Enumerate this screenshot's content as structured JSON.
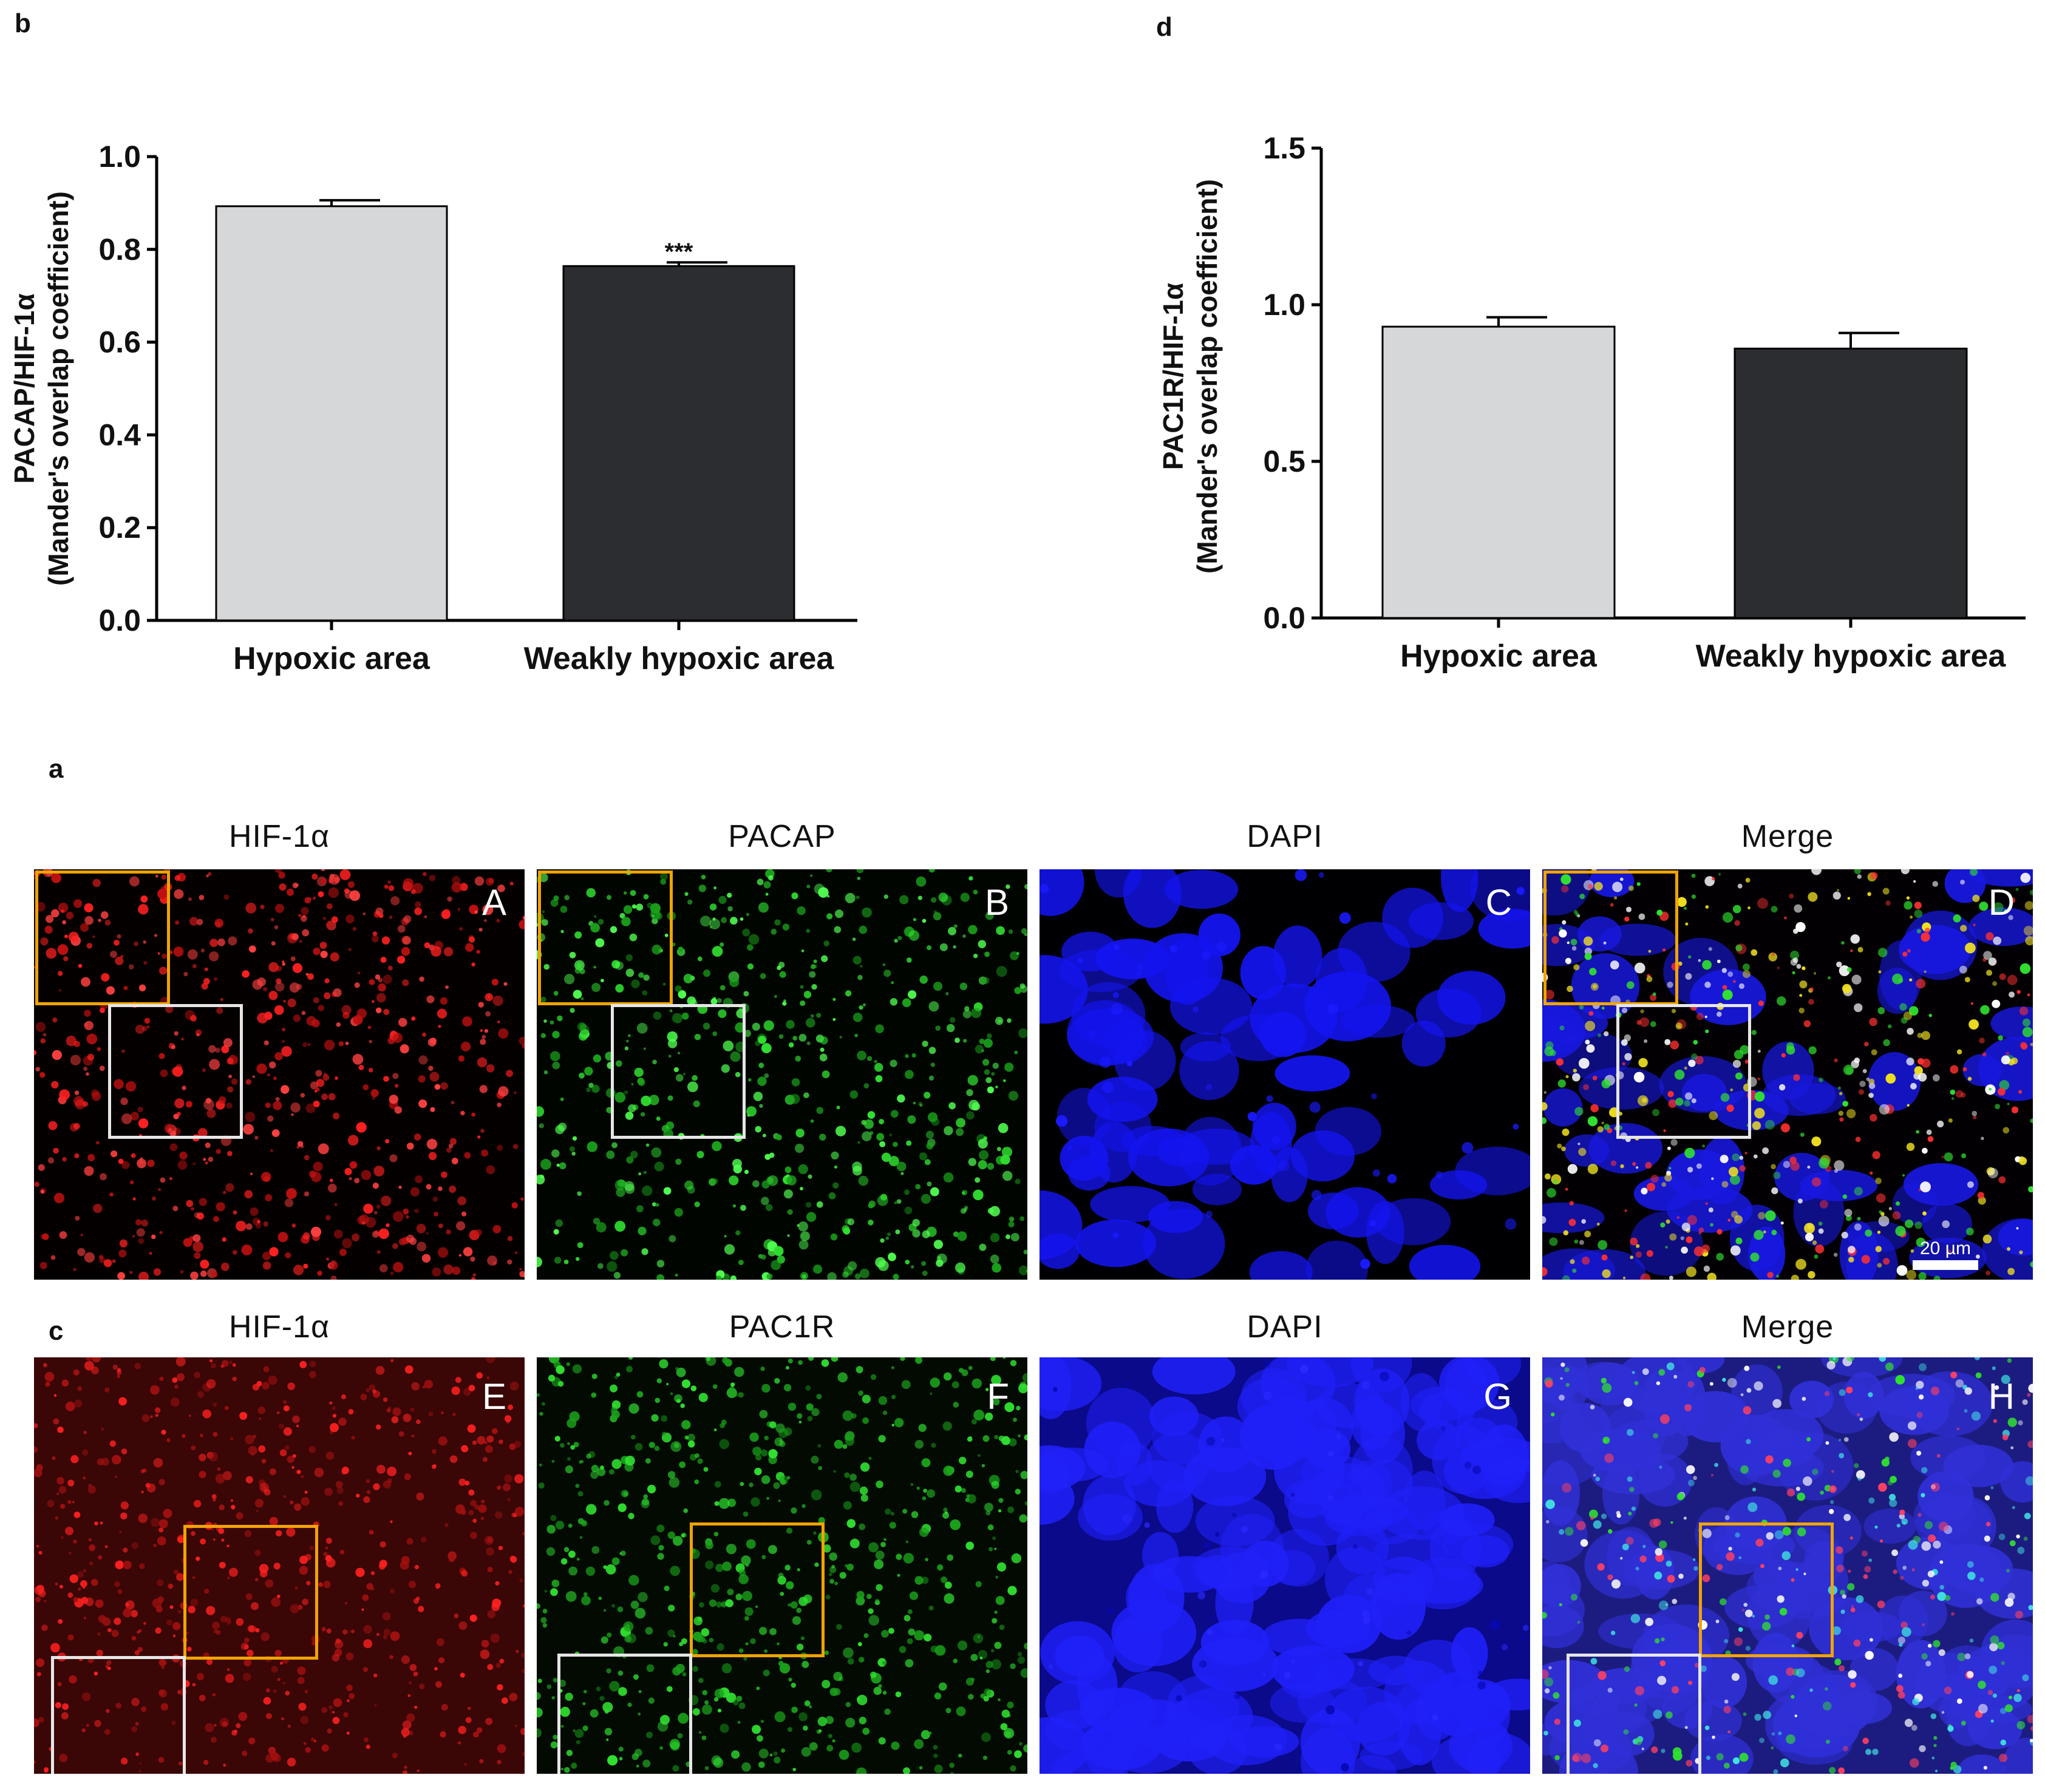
{
  "panels": {
    "b": "b",
    "d": "d",
    "a": "a",
    "c": "c"
  },
  "chart_data": [
    {
      "id": "b",
      "type": "bar",
      "categories": [
        "Hypoxic area",
        "Weakly hypoxic area"
      ],
      "values": [
        0.893,
        0.764
      ],
      "errors": [
        0.013,
        0.008
      ],
      "annotations": [
        "",
        "***"
      ],
      "ylim": [
        0,
        1.0
      ],
      "yticks": [
        0.0,
        0.2,
        0.4,
        0.6,
        0.8,
        1.0
      ],
      "ytick_labels": [
        "0.0",
        "0.2",
        "0.4",
        "0.6",
        "0.8",
        "1.0"
      ],
      "ylabel_line1": "PACAP/HIF-1α",
      "ylabel_line2": "(Mander's overlap coefficient)",
      "colors": [
        "#d6d7d9",
        "#2c2d30"
      ]
    },
    {
      "id": "d",
      "type": "bar",
      "categories": [
        "Hypoxic area",
        "Weakly hypoxic area"
      ],
      "values": [
        0.93,
        0.86
      ],
      "errors": [
        0.03,
        0.05
      ],
      "annotations": [
        "",
        ""
      ],
      "ylim": [
        0,
        1.5
      ],
      "yticks": [
        0.0,
        0.5,
        1.0,
        1.5
      ],
      "ytick_labels": [
        "0.0",
        "0.5",
        "1.0",
        "1.5"
      ],
      "ylabel_line1": "PAC1R/HIF-1α",
      "ylabel_line2": "(Mander's overlap coefficient)",
      "colors": [
        "#d6d7d9",
        "#2c2d30"
      ]
    }
  ],
  "micro_rows": [
    {
      "titles": [
        "HIF-1α",
        "PACAP",
        "DAPI",
        "Merge"
      ],
      "letters": [
        "A",
        "B",
        "C",
        "D"
      ]
    },
    {
      "titles": [
        "HIF-1α",
        "PAC1R",
        "DAPI",
        "Merge"
      ],
      "letters": [
        "E",
        "F",
        "G",
        "H"
      ]
    }
  ],
  "scale_bar": "20 µm",
  "colors": {
    "red": "#e01010",
    "green": "#22c822",
    "blue": "#1010e8",
    "orange": "#f0a400",
    "box_white": "#e6e6e6"
  }
}
